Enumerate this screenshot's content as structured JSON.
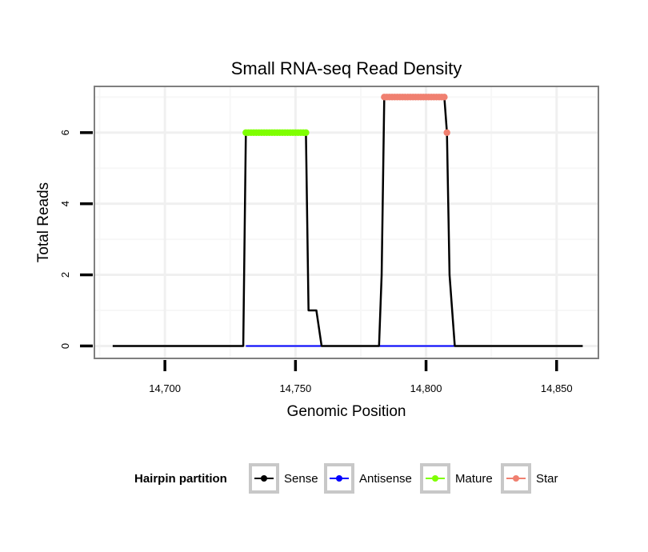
{
  "chart_data": {
    "type": "line",
    "title": "Small RNA-seq Read Density",
    "xlabel": "Genomic Position",
    "ylabel": "Total Reads",
    "xlim": [
      14673,
      14866
    ],
    "ylim": [
      -0.35,
      7.3
    ],
    "x_ticks": [
      14700,
      14750,
      14800,
      14850
    ],
    "x_tick_labels": [
      "14,700",
      "14,750",
      "14,800",
      "14,850"
    ],
    "y_ticks": [
      0,
      2,
      4,
      6
    ],
    "y_tick_labels": [
      "0",
      "2",
      "4",
      "6"
    ],
    "grid": true,
    "legend_position": "bottom",
    "legend_title": "Hairpin partition",
    "colors": {
      "Sense": "#000000",
      "Antisense": "#0000ff",
      "Mature": "#7fff00",
      "Star": "#f08070"
    },
    "series": [
      {
        "name": "Sense",
        "type": "line",
        "x": [
          14680,
          14730,
          14731,
          14754,
          14755,
          14758,
          14760,
          14782,
          14783,
          14784,
          14807,
          14808,
          14809,
          14811,
          14860
        ],
        "y": [
          0,
          0,
          6,
          6,
          1,
          1,
          0,
          0,
          2,
          7,
          7,
          6,
          2,
          0,
          0
        ]
      },
      {
        "name": "Antisense",
        "type": "line",
        "x": [
          14731,
          14811
        ],
        "y": [
          0,
          0
        ]
      },
      {
        "name": "Mature",
        "type": "points",
        "x": [
          14731,
          14732,
          14733,
          14734,
          14735,
          14736,
          14737,
          14738,
          14739,
          14740,
          14741,
          14742,
          14743,
          14744,
          14745,
          14746,
          14747,
          14748,
          14749,
          14750,
          14751,
          14752,
          14753,
          14754
        ],
        "y": [
          6,
          6,
          6,
          6,
          6,
          6,
          6,
          6,
          6,
          6,
          6,
          6,
          6,
          6,
          6,
          6,
          6,
          6,
          6,
          6,
          6,
          6,
          6,
          6
        ]
      },
      {
        "name": "Star",
        "type": "points",
        "x": [
          14784,
          14785,
          14786,
          14787,
          14788,
          14789,
          14790,
          14791,
          14792,
          14793,
          14794,
          14795,
          14796,
          14797,
          14798,
          14799,
          14800,
          14801,
          14802,
          14803,
          14804,
          14805,
          14806,
          14807,
          14808
        ],
        "y": [
          7,
          7,
          7,
          7,
          7,
          7,
          7,
          7,
          7,
          7,
          7,
          7,
          7,
          7,
          7,
          7,
          7,
          7,
          7,
          7,
          7,
          7,
          7,
          7,
          6
        ]
      }
    ]
  }
}
